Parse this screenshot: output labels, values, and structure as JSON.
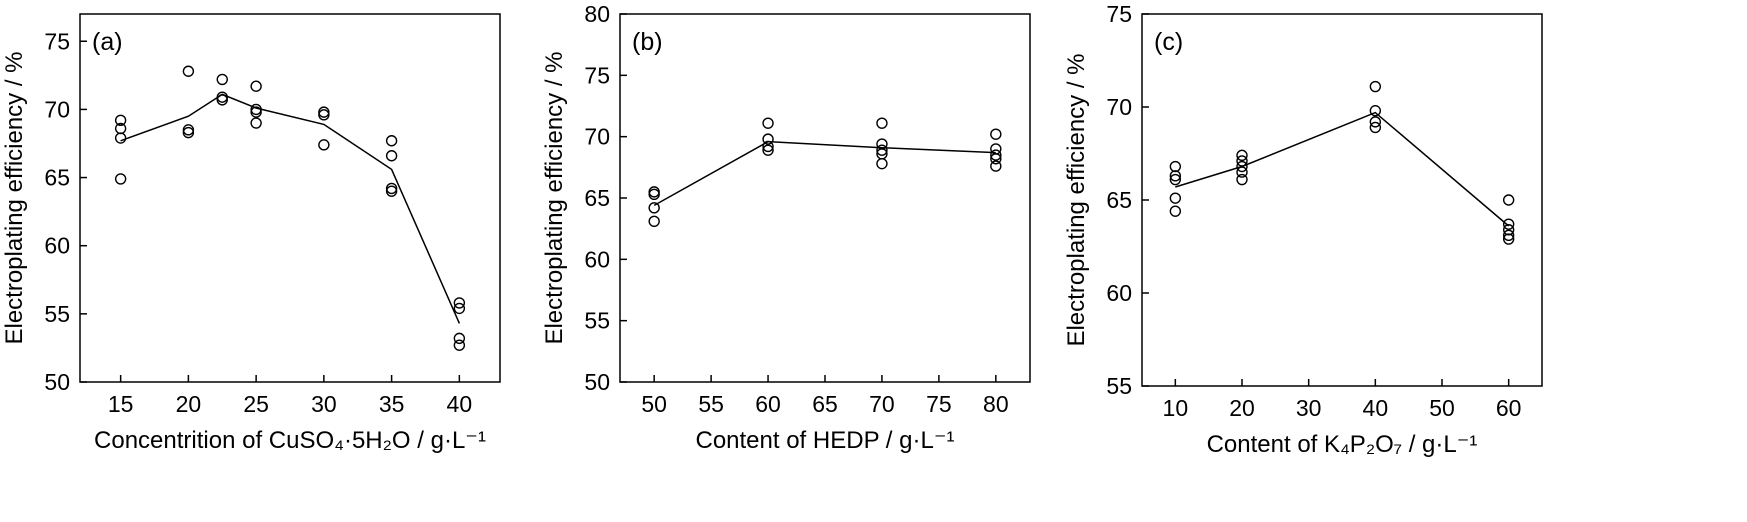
{
  "chart_data": [
    {
      "type": "scatter",
      "panel_label": "(a)",
      "xlabel": "Concentrition of CuSO₄·5H₂O / g·L⁻¹",
      "ylabel": "Electroplating efficiency / %",
      "xlim": [
        12,
        43
      ],
      "ylim": [
        50,
        77
      ],
      "xticks": [
        15,
        20,
        25,
        30,
        35,
        40
      ],
      "yticks": [
        50,
        55,
        60,
        65,
        70,
        75
      ],
      "points": [
        [
          15,
          69.2
        ],
        [
          15,
          68.6
        ],
        [
          15,
          67.9
        ],
        [
          15,
          64.9
        ],
        [
          20,
          72.8
        ],
        [
          20,
          68.5
        ],
        [
          20,
          68.3
        ],
        [
          22.5,
          72.2
        ],
        [
          22.5,
          70.9
        ],
        [
          22.5,
          70.7
        ],
        [
          25,
          71.7
        ],
        [
          25,
          70.0
        ],
        [
          25,
          69.8
        ],
        [
          25,
          69.0
        ],
        [
          30,
          69.8
        ],
        [
          30,
          69.6
        ],
        [
          30,
          67.4
        ],
        [
          35,
          67.7
        ],
        [
          35,
          66.6
        ],
        [
          35,
          64.2
        ],
        [
          35,
          64.0
        ],
        [
          40,
          55.8
        ],
        [
          40,
          55.4
        ],
        [
          40,
          53.2
        ],
        [
          40,
          52.7
        ]
      ],
      "line": [
        [
          15,
          67.7
        ],
        [
          20,
          69.5
        ],
        [
          22.5,
          71.1
        ],
        [
          25,
          70.1
        ],
        [
          30,
          68.9
        ],
        [
          35,
          65.6
        ],
        [
          40,
          54.3
        ]
      ]
    },
    {
      "type": "scatter",
      "panel_label": "(b)",
      "xlabel": "Content of HEDP / g·L⁻¹",
      "ylabel": "Electroplating efficiency / %",
      "xlim": [
        47,
        83
      ],
      "ylim": [
        50,
        80
      ],
      "xticks": [
        50,
        55,
        60,
        65,
        70,
        75,
        80
      ],
      "yticks": [
        50,
        55,
        60,
        65,
        70,
        75,
        80
      ],
      "points": [
        [
          50,
          65.5
        ],
        [
          50,
          65.3
        ],
        [
          50,
          64.2
        ],
        [
          50,
          63.1
        ],
        [
          60,
          71.1
        ],
        [
          60,
          69.8
        ],
        [
          60,
          69.2
        ],
        [
          60,
          68.9
        ],
        [
          70,
          71.1
        ],
        [
          70,
          69.4
        ],
        [
          70,
          68.9
        ],
        [
          70,
          68.6
        ],
        [
          70,
          67.8
        ],
        [
          80,
          70.2
        ],
        [
          80,
          69.0
        ],
        [
          80,
          68.5
        ],
        [
          80,
          68.2
        ],
        [
          80,
          67.6
        ]
      ],
      "line": [
        [
          50,
          64.4
        ],
        [
          60,
          69.6
        ],
        [
          70,
          69.1
        ],
        [
          80,
          68.7
        ]
      ]
    },
    {
      "type": "scatter",
      "panel_label": "(c)",
      "xlabel": "Content of K₄P₂O₇ / g·L⁻¹",
      "ylabel": "Electroplating efficiency / %",
      "xlim": [
        5,
        65
      ],
      "ylim": [
        55,
        75
      ],
      "xticks": [
        10,
        20,
        30,
        40,
        50,
        60
      ],
      "yticks": [
        55,
        60,
        65,
        70,
        75
      ],
      "points": [
        [
          10,
          66.8
        ],
        [
          10,
          66.3
        ],
        [
          10,
          66.1
        ],
        [
          10,
          65.1
        ],
        [
          10,
          64.4
        ],
        [
          20,
          67.4
        ],
        [
          20,
          67.1
        ],
        [
          20,
          66.8
        ],
        [
          20,
          66.5
        ],
        [
          20,
          66.1
        ],
        [
          40,
          71.1
        ],
        [
          40,
          69.8
        ],
        [
          40,
          69.2
        ],
        [
          40,
          68.9
        ],
        [
          60,
          65.0
        ],
        [
          60,
          63.7
        ],
        [
          60,
          63.4
        ],
        [
          60,
          63.1
        ],
        [
          60,
          62.9
        ]
      ],
      "line": [
        [
          10,
          65.7
        ],
        [
          20,
          66.8
        ],
        [
          40,
          69.7
        ],
        [
          60,
          63.6
        ]
      ]
    }
  ]
}
